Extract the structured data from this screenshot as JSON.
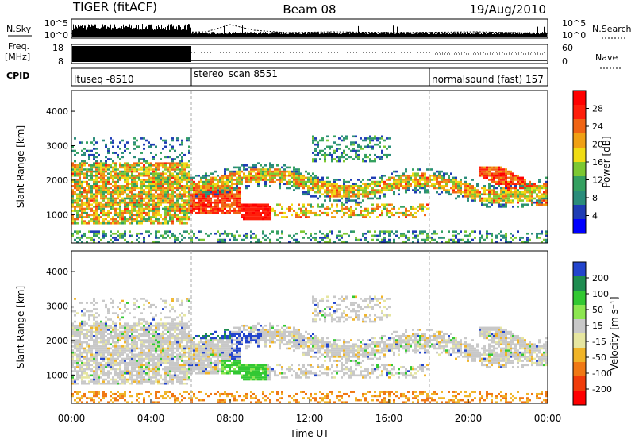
{
  "header": {
    "title": "TIGER (fitACF)",
    "beam": "Beam 08",
    "date": "19/Aug/2010"
  },
  "labels": {
    "n_sky": "N.Sky",
    "n_search": "N.Search",
    "freq": "Freq.",
    "freq_unit": "[MHz]",
    "nave": "Nave",
    "cpid": "CPID",
    "noise_ticks_left": [
      "10^5",
      "10^0"
    ],
    "noise_ticks_right": [
      "10^5",
      "10^0"
    ],
    "freq_ticks": [
      "18",
      "8"
    ],
    "nave_ticks": [
      "60",
      "0"
    ]
  },
  "cpid_segments": [
    {
      "label": "ltuseq -8510",
      "start_hour": 0
    },
    {
      "label": "stereo_scan 8551",
      "start_hour": 6
    },
    {
      "label": "normalsound (fast) 157",
      "start_hour": 18
    }
  ],
  "colors": {
    "power_scale": [
      "#0000ff",
      "#1e3cb4",
      "#2a8c7a",
      "#34a060",
      "#7cc832",
      "#f0dc14",
      "#f0a014",
      "#f06414",
      "#ff1e0a",
      "#ff0000"
    ],
    "velocity_scale": [
      "#2244cc",
      "#1e8c50",
      "#32c832",
      "#8ce650",
      "#c8c8c8",
      "#e6e6a0",
      "#f0b428",
      "#f07814",
      "#f03c0a",
      "#ff0000"
    ]
  },
  "chart_data": [
    {
      "type": "heatmap",
      "panel": "power",
      "xlabel": "",
      "ylabel": "Slant Range [km]",
      "xlim": [
        0,
        24
      ],
      "ylim": [
        180,
        4600
      ],
      "yticks": [
        "1000",
        "2000",
        "3000",
        "4000"
      ],
      "colorbar_label": "Power [dB]",
      "colorbar_ticks": [
        "4",
        "8",
        "12",
        "16",
        "20",
        "24",
        "28"
      ],
      "colorbar_range": [
        0,
        32
      ]
    },
    {
      "type": "heatmap",
      "panel": "velocity",
      "xlabel": "Time UT",
      "ylabel": "Slant Range [km]",
      "xlim": [
        0,
        24
      ],
      "ylim": [
        180,
        4600
      ],
      "yticks": [
        "1000",
        "2000",
        "3000",
        "4000"
      ],
      "xticks": [
        "00:00",
        "04:00",
        "08:00",
        "12:00",
        "16:00",
        "20:00",
        "00:00"
      ],
      "colorbar_label": "Velocity [m s⁻¹]",
      "colorbar_ticks": [
        "200",
        "100",
        "50",
        "15",
        "-15",
        "-50",
        "-100",
        "-200"
      ]
    }
  ]
}
